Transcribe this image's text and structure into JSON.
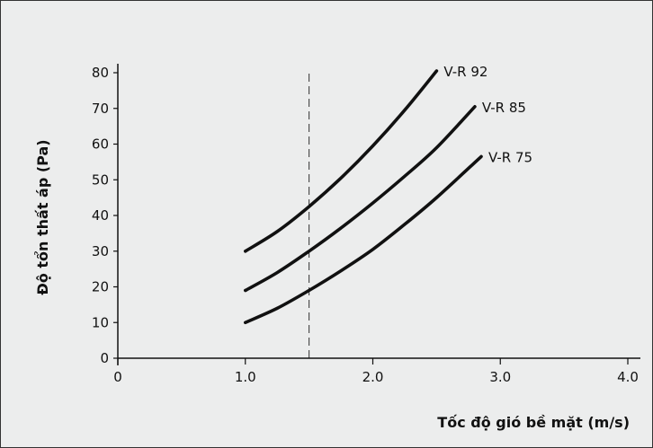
{
  "chart_data": {
    "type": "line",
    "xlabel": "Tốc độ gió bề mặt (m/s)",
    "ylabel": "Độ tổn thất áp (Pa)",
    "xlim": [
      0,
      4.0
    ],
    "ylim": [
      0,
      80
    ],
    "x_ticks": [
      0,
      1.0,
      2.0,
      3.0,
      4.0
    ],
    "x_tick_labels": [
      "0",
      "1.0",
      "2.0",
      "3.0",
      "4.0"
    ],
    "y_ticks": [
      0,
      10,
      20,
      30,
      40,
      50,
      60,
      70,
      80
    ],
    "y_tick_labels": [
      "0",
      "10",
      "20",
      "30",
      "40",
      "50",
      "60",
      "70",
      "80"
    ],
    "grid": false,
    "legend": "inline labels at line ends",
    "reference_line": {
      "axis": "x",
      "value": 1.5,
      "style": "dashed"
    },
    "colors": {
      "background": "#eceded",
      "lines": "#111111"
    },
    "series": [
      {
        "name": "V-R 92",
        "x": [
          1.0,
          1.25,
          1.5,
          1.75,
          2.0,
          2.25,
          2.5
        ],
        "y": [
          30,
          35.5,
          42.5,
          50.5,
          59.5,
          69.5,
          80.5
        ]
      },
      {
        "name": "V-R 85",
        "x": [
          1.0,
          1.25,
          1.5,
          1.75,
          2.0,
          2.25,
          2.5,
          2.8
        ],
        "y": [
          19,
          24,
          30,
          36.5,
          43.5,
          51,
          59,
          70.5
        ]
      },
      {
        "name": "V-R 75",
        "x": [
          1.0,
          1.25,
          1.5,
          1.75,
          2.0,
          2.25,
          2.5,
          2.85
        ],
        "y": [
          10,
          14,
          19,
          24.5,
          30.5,
          37.5,
          45,
          56.5
        ]
      }
    ]
  }
}
